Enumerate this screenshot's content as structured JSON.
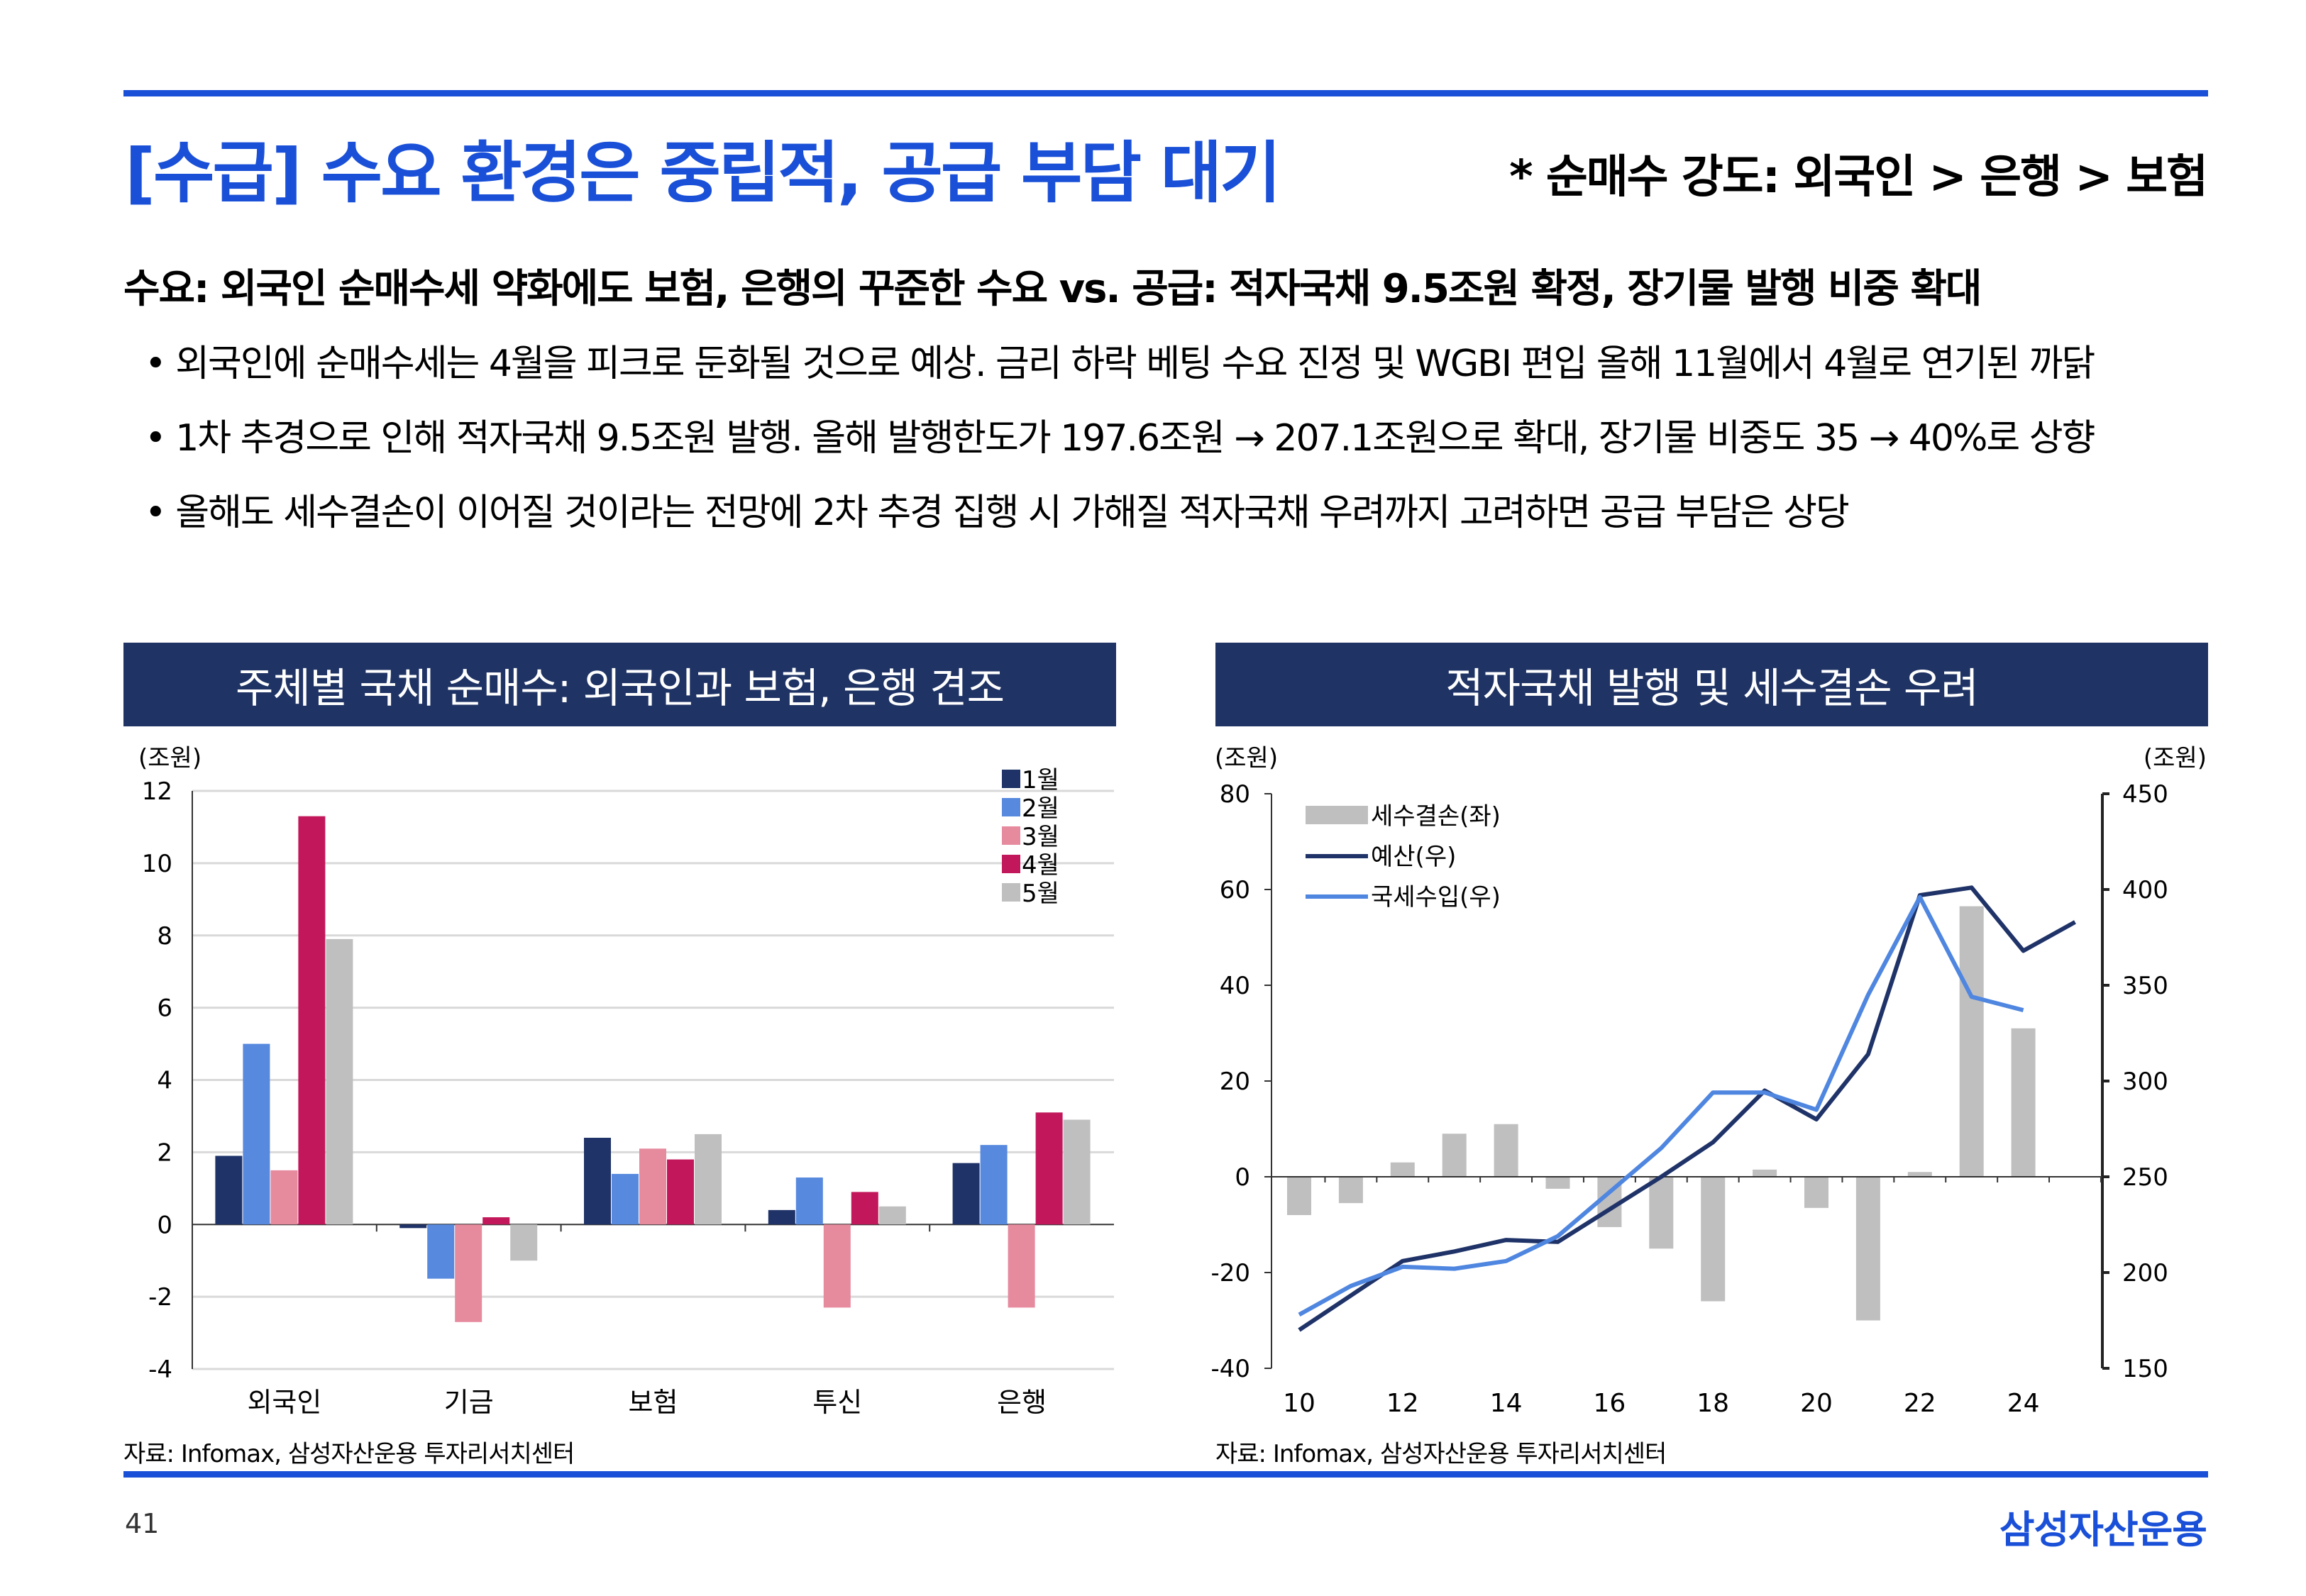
{
  "header": {
    "title": "[수급] 수요 환경은 중립적, 공급 부담 대기",
    "subtitle": "* 순매수 강도: 외국인 > 은행 > 보험"
  },
  "summary": {
    "heading": "수요: 외국인 순매수세 약화에도 보험, 은행의 꾸준한 수요 vs. 공급: 적자국채 9.5조원 확정, 장기물 발행 비중 확대",
    "bullets": [
      "• 외국인에 순매수세는 4월을 피크로 둔화될 것으로 예상. 금리 하락 베팅 수요 진정 및 WGBI 편입 올해 11월에서 4월로 연기된 까닭",
      "• 1차 추경으로 인해 적자국채 9.5조원 발행. 올해 발행한도가 197.6조원 → 207.1조원으로 확대, 장기물 비중도 35 → 40%로 상향",
      "• 올해도 세수결손이 이어질 것이라는 전망에 2차 추경 집행 시 가해질 적자국채 우려까지 고려하면 공급 부담은 상당"
    ]
  },
  "footer": {
    "page": "41",
    "logo": "삼성자산운용"
  },
  "colors": {
    "accent": "#1a50d8",
    "panel": "#1f3364"
  },
  "chart_data": [
    {
      "type": "bar",
      "title": "주체별 국채 순매수: 외국인과 보험, 은행 견조",
      "ylabel": "(조원)",
      "ylim": [
        -4,
        12
      ],
      "yticks": [
        -4,
        -2,
        0,
        2,
        4,
        6,
        8,
        10,
        12
      ],
      "grid": true,
      "legend": "top-right",
      "categories": [
        "외국인",
        "기금",
        "보험",
        "투신",
        "은행"
      ],
      "series": [
        {
          "name": "1월",
          "color": "#1f3368",
          "values": [
            1.9,
            -0.1,
            2.4,
            0.4,
            1.7
          ]
        },
        {
          "name": "2월",
          "color": "#5789de",
          "values": [
            5.0,
            -1.5,
            1.4,
            1.3,
            2.2
          ]
        },
        {
          "name": "3월",
          "color": "#e68a9e",
          "values": [
            1.5,
            -2.7,
            2.1,
            -2.3,
            -2.3
          ]
        },
        {
          "name": "4월",
          "color": "#c2185b",
          "values": [
            11.3,
            0.2,
            1.8,
            0.9,
            3.1
          ]
        },
        {
          "name": "5월",
          "color": "#bfbfbf",
          "values": [
            7.9,
            -1.0,
            2.5,
            0.5,
            2.9
          ]
        }
      ],
      "source": "자료: Infomax, 삼성자산운용 투자리서치센터"
    },
    {
      "type": "bar+line",
      "title": "적자국채 발행 및 세수결손 우려",
      "ylabel_left": "(조원)",
      "ylabel_right": "(조원)",
      "ylim_left": [
        -40,
        80
      ],
      "ylim_right": [
        150,
        450
      ],
      "yticks_left": [
        -40,
        -20,
        0,
        20,
        40,
        60,
        80
      ],
      "yticks_right": [
        150,
        200,
        250,
        300,
        350,
        400,
        450
      ],
      "x": [
        10,
        11,
        12,
        13,
        14,
        15,
        16,
        17,
        18,
        19,
        20,
        21,
        22,
        23,
        24,
        25
      ],
      "xticks": [
        10,
        12,
        14,
        16,
        18,
        20,
        22,
        24
      ],
      "legend": "top-left",
      "series": [
        {
          "name": "세수결손(좌)",
          "type": "bar",
          "axis": "left",
          "color": "#bfbfbf",
          "values": [
            -8,
            -5.5,
            3,
            9,
            11,
            -2.5,
            -10.5,
            -15,
            -26,
            1.5,
            -6.5,
            -30,
            1,
            56.5,
            31,
            null
          ]
        },
        {
          "name": "예산(우)",
          "type": "line",
          "axis": "right",
          "color": "#1f3368",
          "values": [
            170,
            188,
            206,
            211,
            217,
            216,
            233,
            250,
            268,
            295,
            280,
            314,
            397,
            401,
            368,
            383
          ]
        },
        {
          "name": "국세수입(우)",
          "type": "line",
          "axis": "right",
          "color": "#4f86e0",
          "values": [
            178,
            193,
            203,
            202,
            206,
            219,
            242,
            265,
            294,
            294,
            285,
            345,
            396,
            344,
            337,
            null
          ]
        }
      ],
      "source": "자료: Infomax, 삼성자산운용 투자리서치센터"
    }
  ]
}
